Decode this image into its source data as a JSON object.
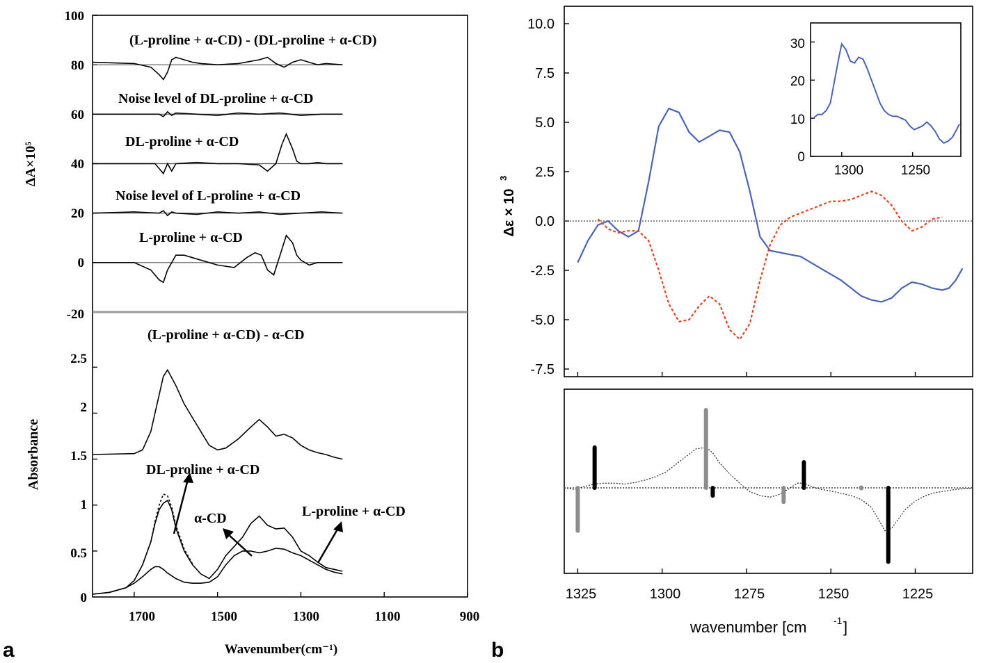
{
  "figure_labels": {
    "a": "a",
    "b": "b"
  },
  "colors": {
    "blue": "#4a63b8",
    "red": "#e8401c",
    "gray_bar": "#8c8c8c",
    "black": "#000000"
  },
  "chart_data": [
    {
      "type": "line",
      "panel": "a-top",
      "ylabel": "ΔA×10⁵",
      "ylim": [
        -20,
        100
      ],
      "xlim": [
        1800,
        900
      ],
      "yticks": [
        "100",
        "80",
        "60",
        "40",
        "20",
        "0",
        "-20"
      ],
      "labels": {
        "diff_dl": "(L-proline + α-CD) - (DL-proline + α-CD)",
        "noise_dl": "Noise level of  DL-proline + α-CD",
        "dl": "DL-proline + α-CD",
        "noise_l": "Noise level of  L-proline + α-CD",
        "l": "L-proline + α-CD"
      },
      "series": [
        {
          "name": "(L-proline + α-CD) - (DL-proline + α-CD)",
          "offset": 80,
          "x": [
            1800,
            1700,
            1660,
            1640,
            1630,
            1620,
            1610,
            1600,
            1580,
            1560,
            1540,
            1500,
            1450,
            1400,
            1380,
            1360,
            1340,
            1320,
            1300,
            1280,
            1260,
            1240,
            1200
          ],
          "y": [
            81,
            80.5,
            79,
            76,
            74,
            77,
            82,
            83,
            82,
            81,
            80.5,
            80,
            80.5,
            82,
            83,
            80.5,
            79,
            81,
            82,
            81,
            80,
            80.5,
            80
          ]
        },
        {
          "name": "Noise level of  DL-proline + α-CD",
          "offset": 60,
          "x": [
            1800,
            1700,
            1640,
            1630,
            1620,
            1610,
            1600,
            1550,
            1500,
            1450,
            1400,
            1350,
            1300,
            1250,
            1200
          ],
          "y": [
            60,
            60,
            60,
            59,
            61,
            59.5,
            60.5,
            60,
            59.5,
            60.5,
            60,
            60.5,
            59.5,
            60,
            60
          ]
        },
        {
          "name": "DL-proline + α-CD",
          "offset": 40,
          "x": [
            1800,
            1700,
            1650,
            1640,
            1630,
            1620,
            1610,
            1600,
            1550,
            1500,
            1450,
            1400,
            1380,
            1360,
            1345,
            1335,
            1320,
            1310,
            1300,
            1280,
            1260,
            1240,
            1200
          ],
          "y": [
            40,
            40,
            40,
            38,
            36,
            40,
            37,
            40,
            40.5,
            40,
            40,
            39.5,
            37,
            40,
            48,
            52,
            46,
            41,
            40,
            40,
            40.5,
            40,
            40
          ]
        },
        {
          "name": "Noise level of  L-proline + α-CD",
          "offset": 20,
          "x": [
            1800,
            1700,
            1640,
            1630,
            1620,
            1610,
            1600,
            1550,
            1500,
            1450,
            1400,
            1350,
            1300,
            1250,
            1200
          ],
          "y": [
            20,
            20.5,
            20,
            21,
            19,
            20.5,
            20,
            19.5,
            20.5,
            20,
            20.5,
            19.5,
            20,
            20.5,
            20
          ]
        },
        {
          "name": "L-proline + α-CD",
          "offset": 0,
          "x": [
            1800,
            1700,
            1660,
            1640,
            1630,
            1620,
            1600,
            1580,
            1540,
            1500,
            1460,
            1430,
            1410,
            1395,
            1380,
            1365,
            1350,
            1335,
            1320,
            1310,
            1300,
            1280,
            1260,
            1220,
            1200
          ],
          "y": [
            0,
            0,
            -3,
            -7,
            -8,
            -3,
            3,
            3,
            1,
            -1,
            -2,
            2,
            4,
            3,
            -3,
            -5,
            3,
            11,
            8,
            3,
            1,
            -1,
            0,
            0,
            0
          ]
        }
      ]
    },
    {
      "type": "line",
      "panel": "a-bottom",
      "title": "(L-proline + α-CD) -  α-CD",
      "xlabel": "Wavenumber(cm⁻¹)",
      "ylabel": "Absorbance",
      "xlim": [
        1800,
        900
      ],
      "ylim": [
        0,
        3.1
      ],
      "xticks": [
        "1700",
        "1500",
        "1300",
        "1100",
        "900"
      ],
      "yticks": [
        "2.5",
        "2",
        "1.5",
        "1",
        "0.5",
        "0"
      ],
      "annotations": {
        "dl": "DL-proline + α-CD",
        "acd": "α-CD",
        "l": "L-proline + α-CD"
      },
      "series": [
        {
          "name": "(L-proline + α-CD) -  α-CD",
          "x": [
            1800,
            1700,
            1680,
            1660,
            1640,
            1630,
            1620,
            1600,
            1580,
            1560,
            1540,
            1520,
            1500,
            1480,
            1450,
            1420,
            1400,
            1380,
            1360,
            1340,
            1320,
            1300,
            1280,
            1260,
            1240,
            1220,
            1200
          ],
          "y": [
            1.55,
            1.56,
            1.6,
            1.8,
            2.2,
            2.4,
            2.47,
            2.3,
            2.1,
            1.95,
            1.8,
            1.65,
            1.6,
            1.62,
            1.72,
            1.85,
            1.93,
            1.85,
            1.75,
            1.77,
            1.73,
            1.65,
            1.6,
            1.57,
            1.55,
            1.52,
            1.5
          ]
        },
        {
          "name": "L-proline + α-CD",
          "x": [
            1800,
            1760,
            1720,
            1700,
            1680,
            1660,
            1650,
            1640,
            1630,
            1620,
            1610,
            1600,
            1580,
            1560,
            1540,
            1520,
            1500,
            1480,
            1460,
            1440,
            1420,
            1400,
            1380,
            1360,
            1340,
            1320,
            1300,
            1280,
            1260,
            1240,
            1220,
            1200
          ],
          "y": [
            0.03,
            0.05,
            0.1,
            0.18,
            0.35,
            0.6,
            0.8,
            0.95,
            1.02,
            1.05,
            0.95,
            0.75,
            0.5,
            0.35,
            0.25,
            0.2,
            0.3,
            0.45,
            0.55,
            0.65,
            0.8,
            0.88,
            0.78,
            0.74,
            0.75,
            0.65,
            0.5,
            0.45,
            0.38,
            0.32,
            0.3,
            0.28
          ]
        },
        {
          "name": "DL-proline + α-CD",
          "x": [
            1700,
            1680,
            1660,
            1650,
            1640,
            1630,
            1620,
            1610,
            1600,
            1580,
            1560
          ],
          "y": [
            0.18,
            0.35,
            0.6,
            0.82,
            1.0,
            1.12,
            1.1,
            0.98,
            0.78,
            0.52,
            0.36
          ]
        },
        {
          "name": "α-CD",
          "x": [
            1800,
            1760,
            1720,
            1700,
            1680,
            1660,
            1650,
            1640,
            1630,
            1620,
            1600,
            1580,
            1560,
            1540,
            1520,
            1500,
            1480,
            1460,
            1440,
            1420,
            1400,
            1380,
            1360,
            1340,
            1320,
            1300,
            1280,
            1260,
            1240,
            1220,
            1200
          ],
          "y": [
            0.03,
            0.05,
            0.1,
            0.15,
            0.22,
            0.3,
            0.33,
            0.33,
            0.3,
            0.26,
            0.2,
            0.16,
            0.15,
            0.15,
            0.16,
            0.22,
            0.35,
            0.45,
            0.5,
            0.5,
            0.48,
            0.5,
            0.53,
            0.52,
            0.48,
            0.45,
            0.4,
            0.35,
            0.3,
            0.27,
            0.25
          ]
        }
      ]
    },
    {
      "type": "line",
      "panel": "b-top",
      "ylabel": "Δε × 10",
      "ylabel_sup": "3",
      "xlim": [
        1329,
        1208
      ],
      "ylim": [
        -7.5,
        10.0
      ],
      "yticks": [
        "10.0",
        "7.5",
        "5.0",
        "2.5",
        "0.0",
        "-2.5",
        "-5.0",
        "-7.5"
      ],
      "series": [
        {
          "name": "",
          "color": "blue",
          "x": [
            1325,
            1322,
            1319,
            1316,
            1313,
            1310,
            1307,
            1304,
            1301,
            1298,
            1295,
            1292,
            1289,
            1286,
            1283,
            1280,
            1277,
            1274,
            1271,
            1268,
            1265,
            1262,
            1259,
            1256,
            1253,
            1250,
            1247,
            1244,
            1241,
            1238,
            1235,
            1232,
            1229,
            1226,
            1223,
            1220,
            1217,
            1215,
            1213,
            1211
          ],
          "y": [
            -2.1,
            -1.0,
            -0.2,
            0.0,
            -0.5,
            -0.8,
            -0.5,
            2.0,
            4.8,
            5.7,
            5.5,
            4.5,
            4.0,
            4.3,
            4.6,
            4.5,
            3.5,
            1.5,
            -0.8,
            -1.5,
            -1.6,
            -1.7,
            -1.8,
            -2.1,
            -2.4,
            -2.7,
            -3.0,
            -3.4,
            -3.8,
            -4.0,
            -4.1,
            -3.9,
            -3.4,
            -3.1,
            -3.2,
            -3.4,
            -3.5,
            -3.4,
            -3.0,
            -2.4
          ]
        },
        {
          "name": "",
          "color": "red",
          "style": "dashed",
          "x": [
            1319,
            1316,
            1313,
            1310,
            1307,
            1304,
            1301,
            1298,
            1295,
            1292,
            1289,
            1286,
            1283,
            1280,
            1277,
            1274,
            1271,
            1268,
            1265,
            1262,
            1259,
            1256,
            1253,
            1250,
            1247,
            1244,
            1241,
            1238,
            1235,
            1232,
            1229,
            1226,
            1223,
            1220,
            1217
          ],
          "y": [
            0.1,
            -0.4,
            -0.6,
            -0.5,
            -0.5,
            -1.0,
            -2.5,
            -4.2,
            -5.1,
            -5.0,
            -4.3,
            -3.8,
            -4.2,
            -5.5,
            -6.0,
            -5.2,
            -3.0,
            -1.2,
            -0.2,
            0.2,
            0.4,
            0.6,
            0.8,
            1.0,
            1.0,
            1.1,
            1.3,
            1.5,
            1.3,
            0.8,
            0.0,
            -0.5,
            -0.3,
            0.1,
            0.2
          ]
        }
      ],
      "inset": {
        "xlim": [
          1322,
          1216
        ],
        "ylim": [
          0,
          35
        ],
        "xticks": [
          "1300",
          "1250"
        ],
        "yticks": [
          "30",
          "20",
          "10",
          "0"
        ],
        "series": [
          {
            "name": "",
            "color": "blue",
            "x": [
              1320,
              1317,
              1314,
              1311,
              1308,
              1305,
              1302,
              1300,
              1297,
              1294,
              1291,
              1288,
              1285,
              1282,
              1279,
              1276,
              1273,
              1270,
              1267,
              1264,
              1261,
              1258,
              1255,
              1252,
              1249,
              1246,
              1243,
              1240,
              1237,
              1234,
              1231,
              1228,
              1225,
              1222,
              1219,
              1217
            ],
            "y": [
              10,
              11,
              11,
              12,
              14,
              20,
              26,
              29.5,
              28,
              25,
              24.5,
              26,
              25.5,
              23,
              20,
              17,
              14,
              12,
              11,
              10.5,
              10.5,
              10,
              9.5,
              8,
              7,
              7.5,
              8,
              9,
              8,
              6.5,
              4.5,
              3.5,
              4,
              5,
              7,
              8.5
            ]
          }
        ]
      }
    },
    {
      "type": "bar",
      "panel": "b-bottom",
      "xlabel": "wavenumber [cm",
      "xlabel_sup": "-1",
      "xlabel_end": "]",
      "xlim": [
        1329,
        1208
      ],
      "xticks": [
        "1325",
        "1300",
        "1275",
        "1250",
        "1225"
      ],
      "sticks": [
        {
          "x": 1325,
          "value": -0.55,
          "color": "gray_bar"
        },
        {
          "x": 1320,
          "value": 0.52,
          "color": "black"
        },
        {
          "x": 1287,
          "value": 1.0,
          "color": "gray_bar"
        },
        {
          "x": 1285,
          "value": -0.1,
          "color": "black"
        },
        {
          "x": 1264,
          "value": -0.18,
          "color": "gray_bar"
        },
        {
          "x": 1258,
          "value": 0.33,
          "color": "black"
        },
        {
          "x": 1233,
          "value": -0.95,
          "color": "black"
        }
      ],
      "envelope": {
        "x": [
          1329,
          1326,
          1323,
          1320,
          1317,
          1314,
          1311,
          1308,
          1305,
          1302,
          1299,
          1296,
          1293,
          1290,
          1287,
          1285,
          1283,
          1280,
          1277,
          1274,
          1271,
          1268,
          1265,
          1262,
          1260,
          1258,
          1256,
          1253,
          1250,
          1247,
          1244,
          1241,
          1238,
          1236,
          1234,
          1232,
          1230,
          1228,
          1225,
          1222,
          1219,
          1216,
          1213,
          1210,
          1208
        ],
        "y": [
          0.0,
          -0.02,
          0.02,
          0.05,
          0.06,
          0.06,
          0.05,
          0.07,
          0.1,
          0.14,
          0.2,
          0.3,
          0.4,
          0.5,
          0.52,
          0.45,
          0.32,
          0.18,
          0.06,
          -0.05,
          -0.1,
          -0.12,
          -0.08,
          0.0,
          0.06,
          0.06,
          0.02,
          -0.02,
          -0.04,
          -0.07,
          -0.1,
          -0.15,
          -0.25,
          -0.4,
          -0.55,
          -0.52,
          -0.4,
          -0.28,
          -0.17,
          -0.1,
          -0.06,
          -0.04,
          -0.02,
          -0.01,
          0.0
        ]
      }
    }
  ]
}
